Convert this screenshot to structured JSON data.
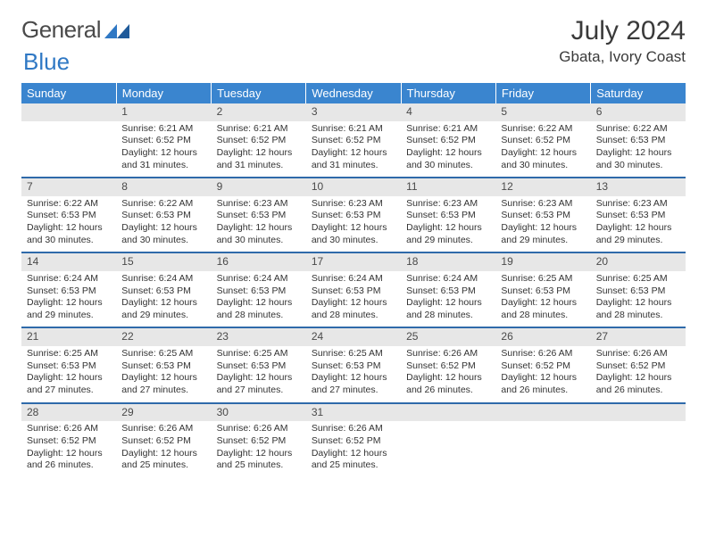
{
  "brand": {
    "part1": "General",
    "part2": "Blue"
  },
  "title": "July 2024",
  "location": "Gbata, Ivory Coast",
  "dow": [
    "Sunday",
    "Monday",
    "Tuesday",
    "Wednesday",
    "Thursday",
    "Friday",
    "Saturday"
  ],
  "colors": {
    "header_bg": "#3a85cf",
    "header_fg": "#ffffff",
    "daynum_bg": "#e7e7e7",
    "rule": "#2f6aaa",
    "text": "#333333"
  },
  "weeks": [
    [
      {
        "n": "",
        "sr": "",
        "ss": "",
        "dl": ""
      },
      {
        "n": "1",
        "sr": "Sunrise: 6:21 AM",
        "ss": "Sunset: 6:52 PM",
        "dl": "Daylight: 12 hours and 31 minutes."
      },
      {
        "n": "2",
        "sr": "Sunrise: 6:21 AM",
        "ss": "Sunset: 6:52 PM",
        "dl": "Daylight: 12 hours and 31 minutes."
      },
      {
        "n": "3",
        "sr": "Sunrise: 6:21 AM",
        "ss": "Sunset: 6:52 PM",
        "dl": "Daylight: 12 hours and 31 minutes."
      },
      {
        "n": "4",
        "sr": "Sunrise: 6:21 AM",
        "ss": "Sunset: 6:52 PM",
        "dl": "Daylight: 12 hours and 30 minutes."
      },
      {
        "n": "5",
        "sr": "Sunrise: 6:22 AM",
        "ss": "Sunset: 6:52 PM",
        "dl": "Daylight: 12 hours and 30 minutes."
      },
      {
        "n": "6",
        "sr": "Sunrise: 6:22 AM",
        "ss": "Sunset: 6:53 PM",
        "dl": "Daylight: 12 hours and 30 minutes."
      }
    ],
    [
      {
        "n": "7",
        "sr": "Sunrise: 6:22 AM",
        "ss": "Sunset: 6:53 PM",
        "dl": "Daylight: 12 hours and 30 minutes."
      },
      {
        "n": "8",
        "sr": "Sunrise: 6:22 AM",
        "ss": "Sunset: 6:53 PM",
        "dl": "Daylight: 12 hours and 30 minutes."
      },
      {
        "n": "9",
        "sr": "Sunrise: 6:23 AM",
        "ss": "Sunset: 6:53 PM",
        "dl": "Daylight: 12 hours and 30 minutes."
      },
      {
        "n": "10",
        "sr": "Sunrise: 6:23 AM",
        "ss": "Sunset: 6:53 PM",
        "dl": "Daylight: 12 hours and 30 minutes."
      },
      {
        "n": "11",
        "sr": "Sunrise: 6:23 AM",
        "ss": "Sunset: 6:53 PM",
        "dl": "Daylight: 12 hours and 29 minutes."
      },
      {
        "n": "12",
        "sr": "Sunrise: 6:23 AM",
        "ss": "Sunset: 6:53 PM",
        "dl": "Daylight: 12 hours and 29 minutes."
      },
      {
        "n": "13",
        "sr": "Sunrise: 6:23 AM",
        "ss": "Sunset: 6:53 PM",
        "dl": "Daylight: 12 hours and 29 minutes."
      }
    ],
    [
      {
        "n": "14",
        "sr": "Sunrise: 6:24 AM",
        "ss": "Sunset: 6:53 PM",
        "dl": "Daylight: 12 hours and 29 minutes."
      },
      {
        "n": "15",
        "sr": "Sunrise: 6:24 AM",
        "ss": "Sunset: 6:53 PM",
        "dl": "Daylight: 12 hours and 29 minutes."
      },
      {
        "n": "16",
        "sr": "Sunrise: 6:24 AM",
        "ss": "Sunset: 6:53 PM",
        "dl": "Daylight: 12 hours and 28 minutes."
      },
      {
        "n": "17",
        "sr": "Sunrise: 6:24 AM",
        "ss": "Sunset: 6:53 PM",
        "dl": "Daylight: 12 hours and 28 minutes."
      },
      {
        "n": "18",
        "sr": "Sunrise: 6:24 AM",
        "ss": "Sunset: 6:53 PM",
        "dl": "Daylight: 12 hours and 28 minutes."
      },
      {
        "n": "19",
        "sr": "Sunrise: 6:25 AM",
        "ss": "Sunset: 6:53 PM",
        "dl": "Daylight: 12 hours and 28 minutes."
      },
      {
        "n": "20",
        "sr": "Sunrise: 6:25 AM",
        "ss": "Sunset: 6:53 PM",
        "dl": "Daylight: 12 hours and 28 minutes."
      }
    ],
    [
      {
        "n": "21",
        "sr": "Sunrise: 6:25 AM",
        "ss": "Sunset: 6:53 PM",
        "dl": "Daylight: 12 hours and 27 minutes."
      },
      {
        "n": "22",
        "sr": "Sunrise: 6:25 AM",
        "ss": "Sunset: 6:53 PM",
        "dl": "Daylight: 12 hours and 27 minutes."
      },
      {
        "n": "23",
        "sr": "Sunrise: 6:25 AM",
        "ss": "Sunset: 6:53 PM",
        "dl": "Daylight: 12 hours and 27 minutes."
      },
      {
        "n": "24",
        "sr": "Sunrise: 6:25 AM",
        "ss": "Sunset: 6:53 PM",
        "dl": "Daylight: 12 hours and 27 minutes."
      },
      {
        "n": "25",
        "sr": "Sunrise: 6:26 AM",
        "ss": "Sunset: 6:52 PM",
        "dl": "Daylight: 12 hours and 26 minutes."
      },
      {
        "n": "26",
        "sr": "Sunrise: 6:26 AM",
        "ss": "Sunset: 6:52 PM",
        "dl": "Daylight: 12 hours and 26 minutes."
      },
      {
        "n": "27",
        "sr": "Sunrise: 6:26 AM",
        "ss": "Sunset: 6:52 PM",
        "dl": "Daylight: 12 hours and 26 minutes."
      }
    ],
    [
      {
        "n": "28",
        "sr": "Sunrise: 6:26 AM",
        "ss": "Sunset: 6:52 PM",
        "dl": "Daylight: 12 hours and 26 minutes."
      },
      {
        "n": "29",
        "sr": "Sunrise: 6:26 AM",
        "ss": "Sunset: 6:52 PM",
        "dl": "Daylight: 12 hours and 25 minutes."
      },
      {
        "n": "30",
        "sr": "Sunrise: 6:26 AM",
        "ss": "Sunset: 6:52 PM",
        "dl": "Daylight: 12 hours and 25 minutes."
      },
      {
        "n": "31",
        "sr": "Sunrise: 6:26 AM",
        "ss": "Sunset: 6:52 PM",
        "dl": "Daylight: 12 hours and 25 minutes."
      },
      {
        "n": "",
        "sr": "",
        "ss": "",
        "dl": ""
      },
      {
        "n": "",
        "sr": "",
        "ss": "",
        "dl": ""
      },
      {
        "n": "",
        "sr": "",
        "ss": "",
        "dl": ""
      }
    ]
  ]
}
